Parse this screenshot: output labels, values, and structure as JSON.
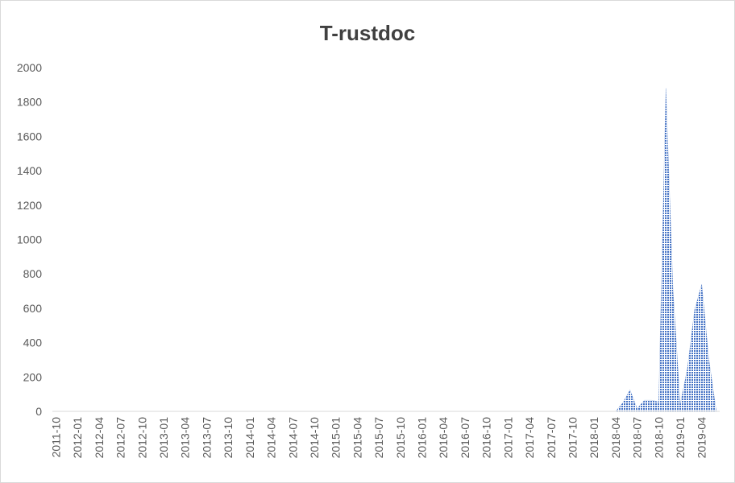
{
  "chart_data": {
    "type": "area",
    "title": "T-rustdoc",
    "categories": [
      "2011-10",
      null,
      null,
      "2012-01",
      null,
      null,
      "2012-04",
      null,
      null,
      "2012-07",
      null,
      null,
      "2012-10",
      null,
      null,
      "2013-01",
      null,
      null,
      "2013-04",
      null,
      null,
      "2013-07",
      null,
      null,
      "2013-10",
      null,
      null,
      "2014-01",
      null,
      null,
      "2014-04",
      null,
      null,
      "2014-07",
      null,
      null,
      "2014-10",
      null,
      null,
      "2015-01",
      null,
      null,
      "2015-04",
      null,
      null,
      "2015-07",
      null,
      null,
      "2015-10",
      null,
      null,
      "2016-01",
      null,
      null,
      "2016-04",
      null,
      null,
      "2016-07",
      null,
      null,
      "2016-10",
      null,
      null,
      "2017-01",
      null,
      null,
      "2017-04",
      null,
      null,
      "2017-07",
      null,
      null,
      "2017-10",
      null,
      null,
      "2018-01",
      null,
      null,
      "2018-04",
      null,
      null,
      "2018-07",
      null,
      null,
      "2018-10",
      null,
      null,
      "2019-01",
      null,
      null,
      "2019-04",
      null,
      null
    ],
    "values": [
      0,
      0,
      0,
      0,
      0,
      0,
      0,
      0,
      0,
      0,
      0,
      0,
      0,
      0,
      0,
      0,
      0,
      0,
      0,
      0,
      0,
      0,
      0,
      0,
      0,
      0,
      0,
      0,
      0,
      0,
      0,
      0,
      0,
      0,
      0,
      0,
      0,
      0,
      0,
      0,
      0,
      0,
      0,
      0,
      0,
      0,
      0,
      0,
      0,
      0,
      0,
      0,
      0,
      0,
      0,
      0,
      0,
      0,
      0,
      0,
      0,
      0,
      0,
      0,
      0,
      0,
      0,
      0,
      0,
      0,
      0,
      0,
      0,
      0,
      0,
      0,
      0,
      0,
      0,
      50,
      125,
      15,
      65,
      65,
      55,
      1880,
      700,
      40,
      250,
      590,
      740,
      300,
      10
    ],
    "color": "#4472c4",
    "ylim": [
      0,
      2000
    ],
    "yticks": [
      0,
      200,
      400,
      600,
      800,
      1000,
      1200,
      1400,
      1600,
      1800,
      2000
    ],
    "grid": false
  }
}
